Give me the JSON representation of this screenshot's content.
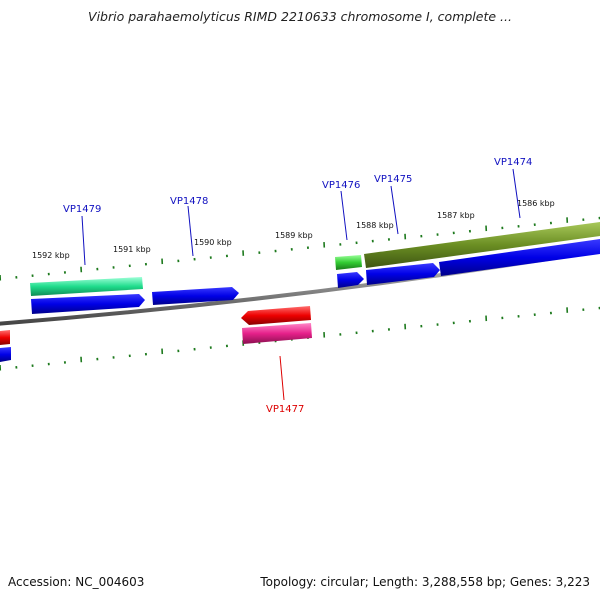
{
  "title": "Vibrio parahaemolyticus RIMD 2210633 chromosome I, complete ...",
  "footer": {
    "accession": "Accession: NC_004603",
    "summary": "Topology: circular; Length: 3,288,558 bp; Genes: 3,223"
  },
  "colors": {
    "backbone": "#8a8a8a",
    "tick": "#1e7a1e",
    "cds": "#0000e6",
    "gene_green": "#1fdc8c",
    "gene_green2": "#33cc33",
    "gene_olive": "#6b8e23",
    "gene_red": "#ee0000",
    "gene_pink": "#e6208a",
    "label_blue": "#1010c0",
    "label_red": "#dd0000"
  },
  "kbp_labels": [
    "1592 kbp",
    "1591 kbp",
    "1590 kbp",
    "1589 kbp",
    "1588 kbp",
    "1587 kbp",
    "1586 kbp"
  ],
  "gene_labels": [
    {
      "text": "VP1479",
      "color": "label_blue"
    },
    {
      "text": "VP1478",
      "color": "label_blue"
    },
    {
      "text": "VP1476",
      "color": "label_blue"
    },
    {
      "text": "VP1475",
      "color": "label_blue"
    },
    {
      "text": "VP1474",
      "color": "label_blue"
    },
    {
      "text": "VP1477",
      "color": "label_red"
    }
  ]
}
